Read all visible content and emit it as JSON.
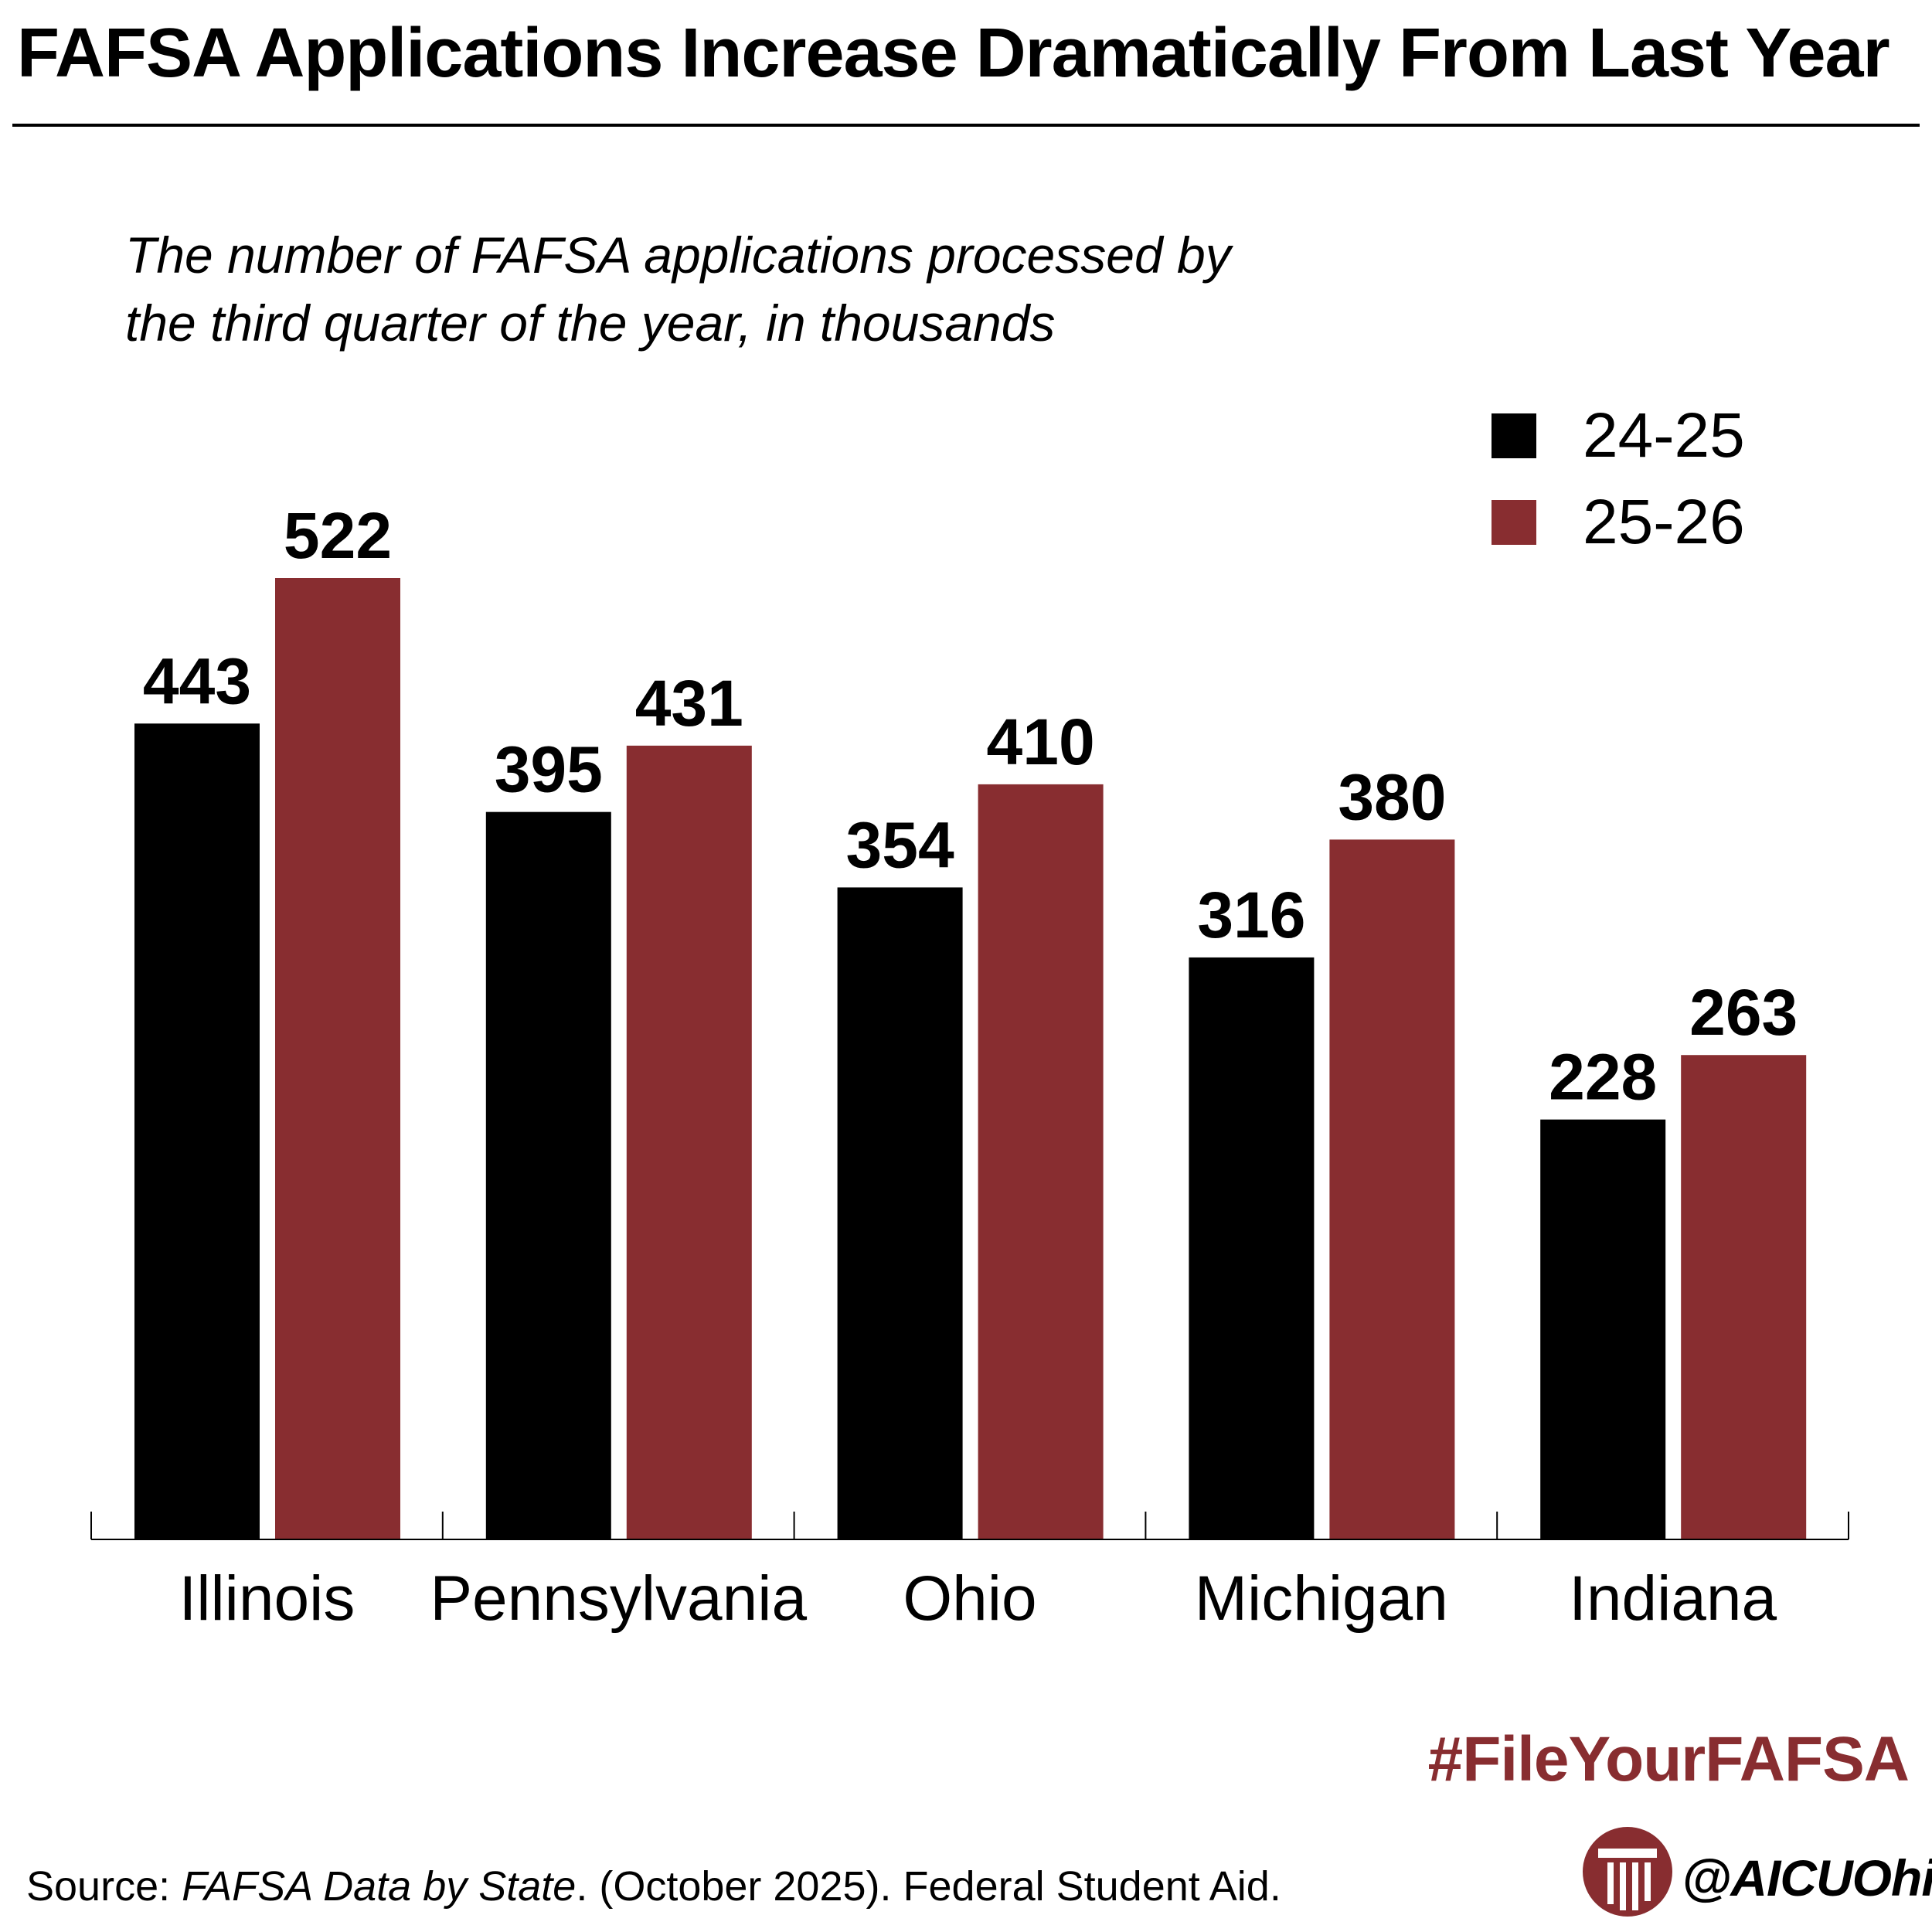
{
  "header": {
    "title": "FAFSA Applications Increase Dramatically From Last Year",
    "subtitle_line1": "The number of FAFSA applications processed by",
    "subtitle_line2": "the third quarter of the year, in thousands"
  },
  "footer": {
    "hashtag": "#FileYourFAFSA",
    "source_prefix": "Source: ",
    "source_title": "FAFSA Data by State",
    "source_rest": ". (October 2025). Federal Student Aid.",
    "handle": "@AICUOhio",
    "logo_icon": "aicu-column-logo-icon"
  },
  "colors": {
    "series_24_25": "#000000",
    "series_25_26": "#882d30",
    "accent": "#882d30"
  },
  "chart_data": {
    "type": "bar",
    "categories": [
      "Illinois",
      "Pennsylvania",
      "Ohio",
      "Michigan",
      "Indiana"
    ],
    "series": [
      {
        "name": "24-25",
        "values": [
          443,
          395,
          354,
          316,
          228
        ]
      },
      {
        "name": "25-26",
        "values": [
          522,
          431,
          410,
          380,
          263
        ]
      }
    ],
    "ylim": [
      0,
      522
    ],
    "legend_position": "top-right",
    "grid": false
  }
}
